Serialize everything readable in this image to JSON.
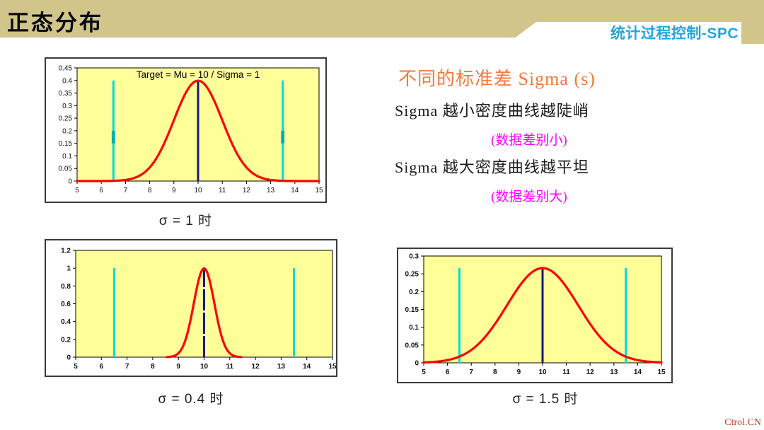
{
  "slide": {
    "title": "正态分布",
    "brand": "统计过程控制-SPC",
    "watermark": "Ctrol.CN",
    "colors": {
      "band": "#D2C58C",
      "brand_blue": "#22A6E0",
      "heading_orange": "#F2793B",
      "note_magenta": "#FF00FF",
      "watermark_red": "#C0391B"
    }
  },
  "right_panel": {
    "heading": "不同的标准差 Sigma (s)",
    "line_small": "Sigma 越小密度曲线越陡峭",
    "note_small": "(数据差别小)",
    "line_large": "Sigma 越大密度曲线越平坦",
    "note_large": "(数据差别大)"
  },
  "chart_data": [
    {
      "type": "line",
      "title": "Target = Mu = 10 / Sigma = 1",
      "caption": "σ = 1 时",
      "grid": false,
      "legend": false,
      "plot_bg": "#FFFF99",
      "x": {
        "min": 5,
        "max": 15,
        "tick_labels": [
          "5",
          "6",
          "7",
          "8",
          "9",
          "10",
          "11",
          "12",
          "13",
          "14",
          "15"
        ]
      },
      "y": {
        "min": 0,
        "max": 0.45,
        "tick_labels": [
          "0",
          "0.05",
          "0.1",
          "0.15",
          "0.2",
          "0.25",
          "0.3",
          "0.35",
          "0.4",
          "0.45"
        ]
      },
      "series": [
        {
          "name": "normal-density",
          "color": "#FF0000",
          "mu": 10,
          "sigma": 1,
          "peak": 0.399,
          "x_range": [
            5,
            15
          ]
        }
      ],
      "center_line": {
        "x": 10,
        "height": 0.399,
        "color": "#191983"
      },
      "spec_lines": {
        "positions": [
          6.5,
          13.5
        ],
        "height": 0.4,
        "color": "#00DCDC"
      }
    },
    {
      "type": "line",
      "title": "",
      "caption": "σ = 0.4 时",
      "grid": false,
      "legend": false,
      "plot_bg": "#FFFF99",
      "x": {
        "min": 5,
        "max": 15,
        "tick_labels": [
          "5",
          "6",
          "7",
          "8",
          "9",
          "10",
          "11",
          "12",
          "13",
          "14",
          "15"
        ]
      },
      "y": {
        "min": 0,
        "max": 1.2,
        "tick_labels": [
          "0",
          "0.2",
          "0.4",
          "0.6",
          "0.8",
          "1",
          "1.2"
        ]
      },
      "series": [
        {
          "name": "normal-density",
          "color": "#FF0000",
          "mu": 10,
          "sigma": 0.4,
          "peak": 0.997,
          "x_range": [
            8.55,
            11.45
          ]
        }
      ],
      "center_line": {
        "x": 10,
        "height": 0.997,
        "color": "#191983"
      },
      "spec_lines": {
        "positions": [
          6.5,
          13.5
        ],
        "height": 1.0,
        "color": "#00DCDC"
      }
    },
    {
      "type": "line",
      "title": "",
      "caption": "σ = 1.5 时",
      "grid": false,
      "legend": false,
      "plot_bg": "#FFFF99",
      "x": {
        "min": 5,
        "max": 15,
        "tick_labels": [
          "5",
          "6",
          "7",
          "8",
          "9",
          "10",
          "11",
          "12",
          "13",
          "14",
          "15"
        ]
      },
      "y": {
        "min": 0,
        "max": 0.3,
        "tick_labels": [
          "0",
          "0.05",
          "0.1",
          "0.15",
          "0.2",
          "0.25",
          "0.3"
        ]
      },
      "series": [
        {
          "name": "normal-density",
          "color": "#FF0000",
          "mu": 10,
          "sigma": 1.5,
          "peak": 0.266,
          "x_range": [
            5,
            15
          ]
        }
      ],
      "center_line": {
        "x": 10,
        "height": 0.266,
        "color": "#191983"
      },
      "spec_lines": {
        "positions": [
          6.5,
          13.5
        ],
        "height": 0.266,
        "color": "#00DCDC"
      }
    }
  ]
}
